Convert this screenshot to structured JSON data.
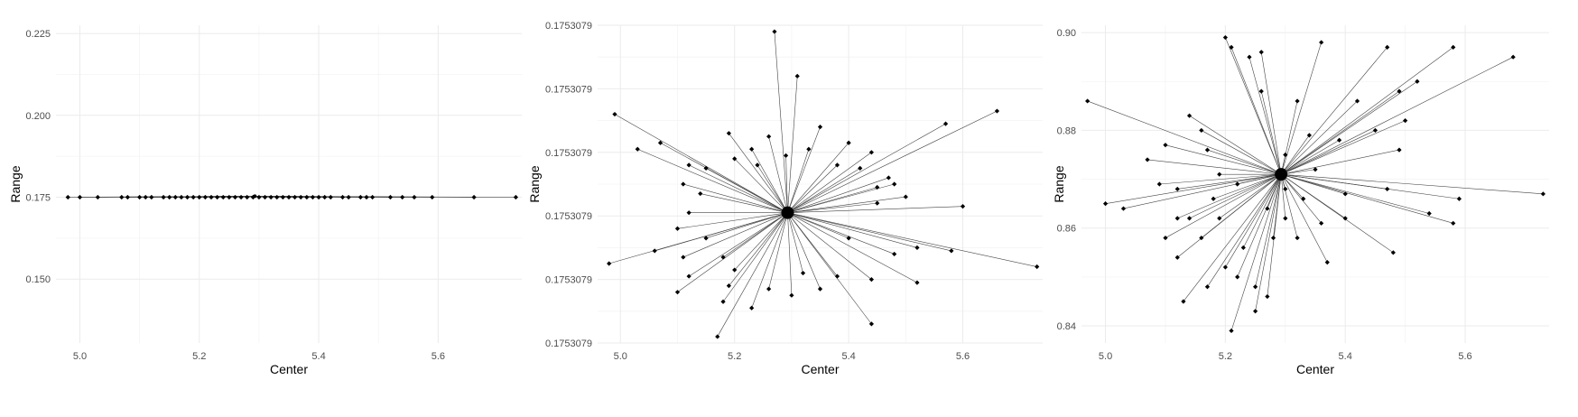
{
  "chart_data": [
    {
      "type": "scatter",
      "title": "",
      "xlabel": "Center",
      "ylabel": "Range",
      "xlim": [
        4.96,
        5.74
      ],
      "ylim": [
        0.1305,
        0.2275
      ],
      "x_ticks": [
        5.0,
        5.2,
        5.4,
        5.6
      ],
      "x_tick_labels": [
        "5.0",
        "5.2",
        "5.4",
        "5.6"
      ],
      "y_ticks": [
        0.15,
        0.175,
        0.2,
        0.225
      ],
      "y_tick_labels": [
        "0.150",
        "0.175",
        "0.200",
        "0.225"
      ],
      "grid": true,
      "center_point": [
        5.293,
        0.1753079
      ],
      "points": [
        [
          4.98,
          0.175
        ],
        [
          5.0,
          0.175
        ],
        [
          5.03,
          0.175
        ],
        [
          5.07,
          0.175
        ],
        [
          5.08,
          0.175
        ],
        [
          5.1,
          0.175
        ],
        [
          5.11,
          0.175
        ],
        [
          5.12,
          0.175
        ],
        [
          5.14,
          0.175
        ],
        [
          5.15,
          0.175
        ],
        [
          5.16,
          0.175
        ],
        [
          5.17,
          0.175
        ],
        [
          5.18,
          0.175
        ],
        [
          5.19,
          0.175
        ],
        [
          5.2,
          0.175
        ],
        [
          5.21,
          0.175
        ],
        [
          5.22,
          0.175
        ],
        [
          5.23,
          0.175
        ],
        [
          5.24,
          0.175
        ],
        [
          5.25,
          0.175
        ],
        [
          5.26,
          0.175
        ],
        [
          5.27,
          0.175
        ],
        [
          5.28,
          0.175
        ],
        [
          5.29,
          0.175
        ],
        [
          5.3,
          0.175
        ],
        [
          5.31,
          0.175
        ],
        [
          5.32,
          0.175
        ],
        [
          5.33,
          0.175
        ],
        [
          5.34,
          0.175
        ],
        [
          5.35,
          0.175
        ],
        [
          5.36,
          0.175
        ],
        [
          5.37,
          0.175
        ],
        [
          5.38,
          0.175
        ],
        [
          5.39,
          0.175
        ],
        [
          5.4,
          0.175
        ],
        [
          5.41,
          0.175
        ],
        [
          5.42,
          0.175
        ],
        [
          5.44,
          0.175
        ],
        [
          5.45,
          0.175
        ],
        [
          5.47,
          0.175
        ],
        [
          5.48,
          0.175
        ],
        [
          5.49,
          0.175
        ],
        [
          5.52,
          0.175
        ],
        [
          5.54,
          0.175
        ],
        [
          5.56,
          0.175
        ],
        [
          5.59,
          0.175
        ],
        [
          5.66,
          0.175
        ],
        [
          5.73,
          0.175
        ]
      ]
    },
    {
      "type": "scatter",
      "title": "",
      "xlabel": "Center",
      "ylabel": "Range",
      "xlim": [
        4.96,
        5.74
      ],
      "ylim": [
        0,
        1
      ],
      "x_ticks": [
        5.0,
        5.2,
        5.4,
        5.6
      ],
      "x_tick_labels": [
        "5.0",
        "5.2",
        "5.4",
        "5.6"
      ],
      "y_ticks": [
        0.0,
        0.2,
        0.4,
        0.6,
        0.8,
        1.0
      ],
      "y_tick_labels": [
        "0.1753079",
        "0.1753079",
        "0.1753079",
        "0.1753079",
        "0.1753079",
        "0.1753079"
      ],
      "grid": true,
      "center_point": [
        5.293,
        0.41
      ],
      "points": [
        [
          5.27,
          0.98
        ],
        [
          5.31,
          0.84
        ],
        [
          4.99,
          0.72
        ],
        [
          5.66,
          0.73
        ],
        [
          5.03,
          0.61
        ],
        [
          5.07,
          0.63
        ],
        [
          5.19,
          0.66
        ],
        [
          5.57,
          0.69
        ],
        [
          5.23,
          0.61
        ],
        [
          5.26,
          0.65
        ],
        [
          5.35,
          0.68
        ],
        [
          5.33,
          0.61
        ],
        [
          5.4,
          0.63
        ],
        [
          5.44,
          0.6
        ],
        [
          5.12,
          0.56
        ],
        [
          5.15,
          0.55
        ],
        [
          5.2,
          0.58
        ],
        [
          5.24,
          0.56
        ],
        [
          5.29,
          0.59
        ],
        [
          5.38,
          0.56
        ],
        [
          5.42,
          0.55
        ],
        [
          5.47,
          0.52
        ],
        [
          5.48,
          0.5
        ],
        [
          5.11,
          0.5
        ],
        [
          5.14,
          0.47
        ],
        [
          5.45,
          0.49
        ],
        [
          5.5,
          0.46
        ],
        [
          5.6,
          0.43
        ],
        [
          5.12,
          0.41
        ],
        [
          5.45,
          0.44
        ],
        [
          5.1,
          0.36
        ],
        [
          5.15,
          0.33
        ],
        [
          5.4,
          0.33
        ],
        [
          5.52,
          0.3
        ],
        [
          5.58,
          0.29
        ],
        [
          4.98,
          0.25
        ],
        [
          5.06,
          0.29
        ],
        [
          5.11,
          0.27
        ],
        [
          5.18,
          0.27
        ],
        [
          5.48,
          0.28
        ],
        [
          5.73,
          0.24
        ],
        [
          5.12,
          0.21
        ],
        [
          5.2,
          0.23
        ],
        [
          5.32,
          0.22
        ],
        [
          5.38,
          0.21
        ],
        [
          5.44,
          0.2
        ],
        [
          5.52,
          0.19
        ],
        [
          5.1,
          0.16
        ],
        [
          5.19,
          0.18
        ],
        [
          5.26,
          0.17
        ],
        [
          5.3,
          0.15
        ],
        [
          5.35,
          0.17
        ],
        [
          5.18,
          0.13
        ],
        [
          5.23,
          0.11
        ],
        [
          5.44,
          0.06
        ],
        [
          5.17,
          0.02
        ]
      ]
    },
    {
      "type": "scatter",
      "title": "",
      "xlabel": "Center",
      "ylabel": "Range",
      "xlim": [
        4.96,
        5.74
      ],
      "ylim": [
        0.8365,
        0.9015
      ],
      "x_ticks": [
        5.0,
        5.2,
        5.4,
        5.6
      ],
      "x_tick_labels": [
        "5.0",
        "5.2",
        "5.4",
        "5.6"
      ],
      "y_ticks": [
        0.84,
        0.86,
        0.88,
        0.9
      ],
      "y_tick_labels": [
        "0.84",
        "0.86",
        "0.88",
        "0.90"
      ],
      "grid": true,
      "center_point": [
        5.293,
        0.871
      ],
      "points": [
        [
          4.97,
          0.886
        ],
        [
          5.0,
          0.865
        ],
        [
          5.03,
          0.864
        ],
        [
          5.07,
          0.874
        ],
        [
          5.09,
          0.869
        ],
        [
          5.1,
          0.877
        ],
        [
          5.12,
          0.868
        ],
        [
          5.12,
          0.862
        ],
        [
          5.1,
          0.858
        ],
        [
          5.14,
          0.883
        ],
        [
          5.16,
          0.88
        ],
        [
          5.17,
          0.876
        ],
        [
          5.19,
          0.871
        ],
        [
          5.2,
          0.899
        ],
        [
          5.21,
          0.897
        ],
        [
          5.24,
          0.895
        ],
        [
          5.26,
          0.896
        ],
        [
          5.26,
          0.888
        ],
        [
          5.3,
          0.875
        ],
        [
          5.32,
          0.886
        ],
        [
          5.36,
          0.898
        ],
        [
          5.47,
          0.897
        ],
        [
          5.58,
          0.897
        ],
        [
          5.68,
          0.895
        ],
        [
          5.52,
          0.89
        ],
        [
          5.49,
          0.888
        ],
        [
          5.42,
          0.886
        ],
        [
          5.45,
          0.88
        ],
        [
          5.5,
          0.882
        ],
        [
          5.49,
          0.876
        ],
        [
          5.39,
          0.878
        ],
        [
          5.34,
          0.879
        ],
        [
          5.73,
          0.867
        ],
        [
          5.59,
          0.866
        ],
        [
          5.47,
          0.868
        ],
        [
          5.4,
          0.867
        ],
        [
          5.35,
          0.872
        ],
        [
          5.3,
          0.868
        ],
        [
          5.27,
          0.864
        ],
        [
          5.22,
          0.869
        ],
        [
          5.18,
          0.866
        ],
        [
          5.14,
          0.862
        ],
        [
          5.12,
          0.854
        ],
        [
          5.16,
          0.858
        ],
        [
          5.19,
          0.862
        ],
        [
          5.22,
          0.85
        ],
        [
          5.25,
          0.848
        ],
        [
          5.27,
          0.846
        ],
        [
          5.21,
          0.839
        ],
        [
          5.13,
          0.845
        ],
        [
          5.17,
          0.848
        ],
        [
          5.32,
          0.858
        ],
        [
          5.37,
          0.853
        ],
        [
          5.4,
          0.862
        ],
        [
          5.48,
          0.855
        ],
        [
          5.54,
          0.863
        ],
        [
          5.58,
          0.861
        ],
        [
          5.33,
          0.866
        ],
        [
          5.36,
          0.861
        ],
        [
          5.28,
          0.858
        ],
        [
          5.23,
          0.856
        ],
        [
          5.3,
          0.862
        ],
        [
          5.25,
          0.843
        ],
        [
          5.2,
          0.852
        ]
      ]
    }
  ]
}
